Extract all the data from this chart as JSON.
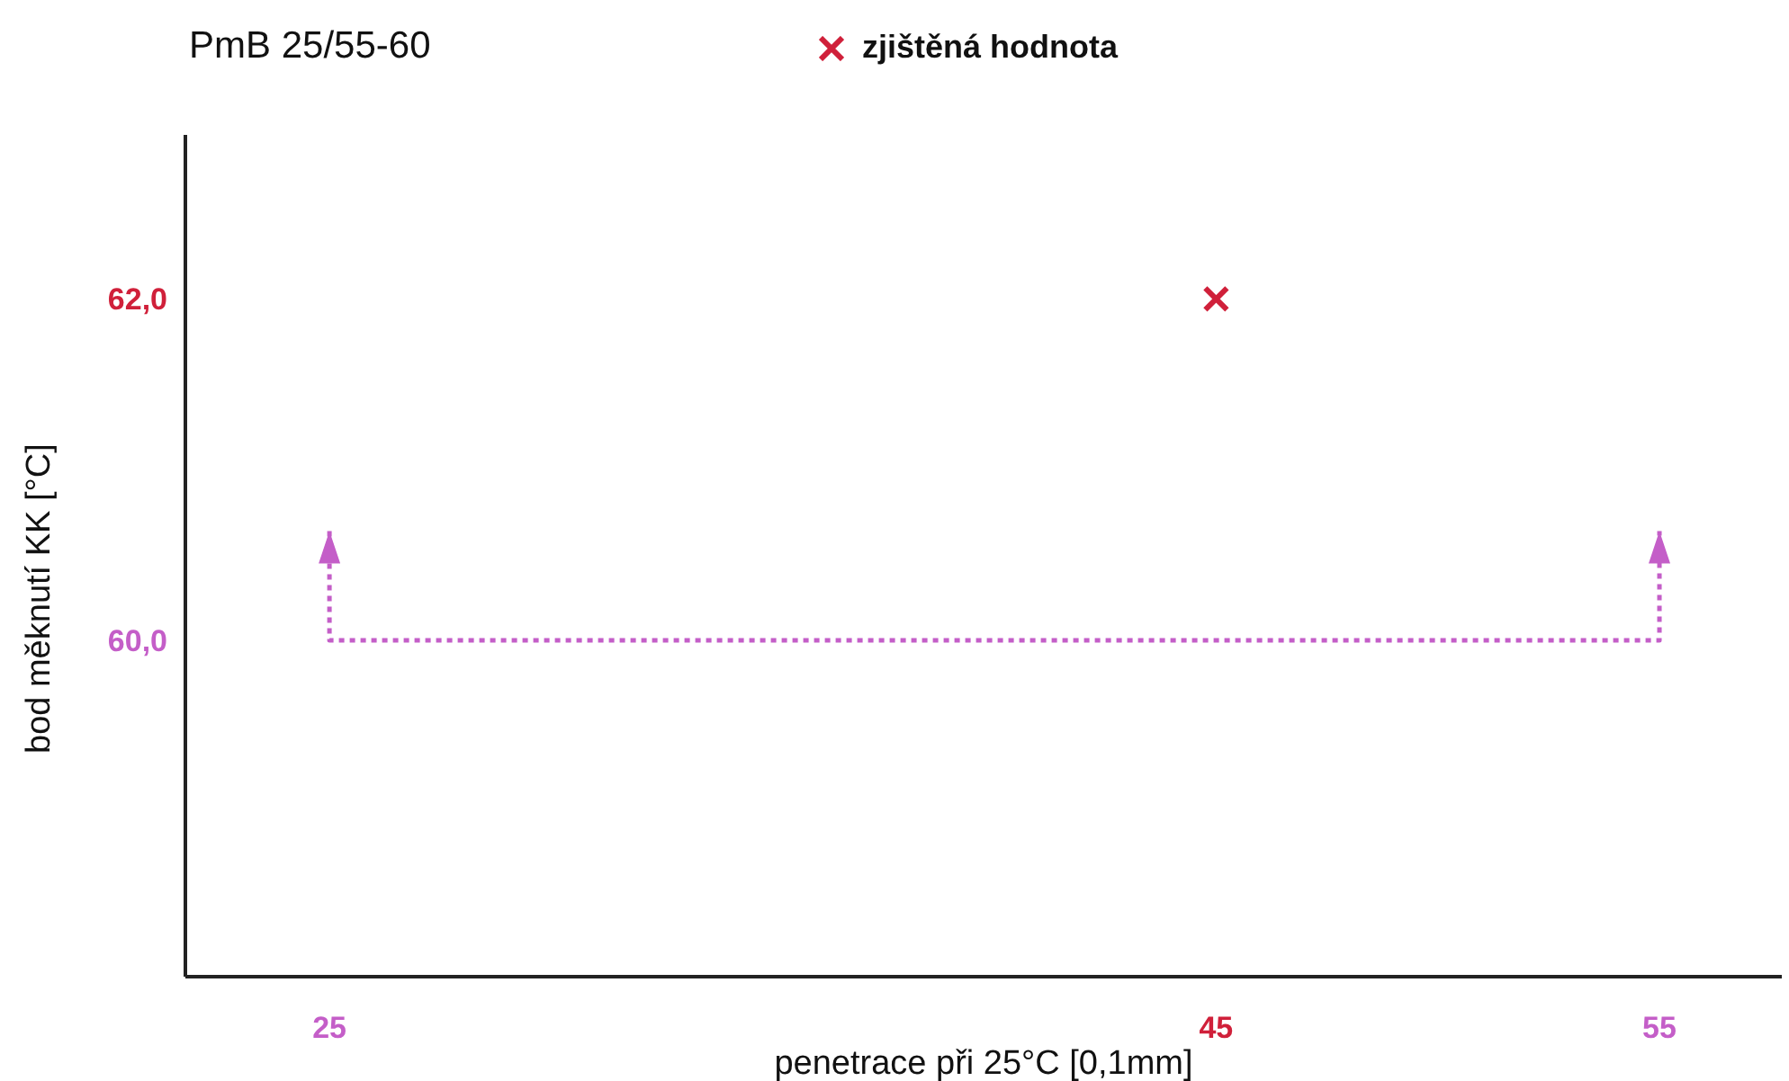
{
  "chart_data": {
    "type": "scatter",
    "title": "PmB 25/55-60",
    "xlabel": "penetrace při 25°C [0,1mm]",
    "ylabel": "bod měknutí KK [°C]",
    "xlim": [
      21.75,
      57.76
    ],
    "ylim": [
      58.03,
      62.96
    ],
    "xticks": [
      25,
      45,
      55
    ],
    "yticks": [
      {
        "value": 60,
        "label": "60,0"
      },
      {
        "value": 62,
        "label": "62,0"
      }
    ],
    "grid": false,
    "legend": "top",
    "series": [
      {
        "name": "zjištěná hodnota",
        "color": "#d0203a",
        "marker": "cross",
        "x": [
          45
        ],
        "values": [
          62
        ]
      },
      {
        "type": "line",
        "color": "#c45ec8",
        "marker": "none",
        "line_style": "dotted",
        "x": [
          25,
          25,
          55,
          55
        ],
        "values": [
          60.64,
          60,
          60,
          60.64
        ]
      }
    ]
  }
}
